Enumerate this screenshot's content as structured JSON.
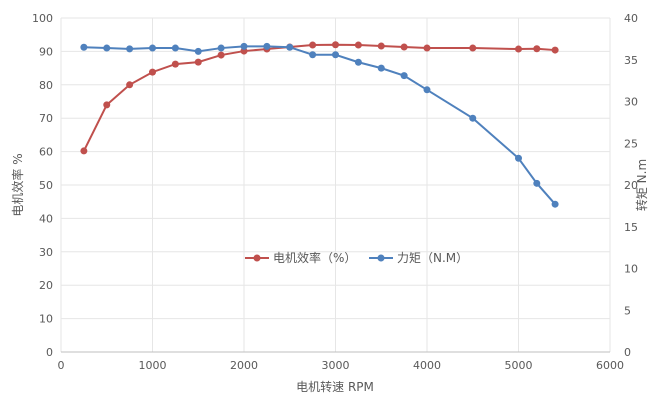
{
  "chart_data": {
    "type": "line",
    "title": "",
    "xlabel": "电机转速 RPM",
    "ylabel": "电机效率 %",
    "y2label": "转矩 N.m",
    "xlim": [
      0,
      6000
    ],
    "ylim": [
      0,
      100
    ],
    "y2lim": [
      0,
      40
    ],
    "xticks": [
      "0",
      "1000",
      "2000",
      "3000",
      "4000",
      "5000",
      "6000"
    ],
    "yticks": [
      "0",
      "10",
      "20",
      "30",
      "40",
      "50",
      "60",
      "70",
      "80",
      "90",
      "100"
    ],
    "y2ticks": [
      "0",
      "5",
      "10",
      "15",
      "20",
      "25",
      "30",
      "35",
      "40"
    ],
    "grid": true,
    "legend_position": "center",
    "x": [
      250,
      500,
      750,
      1000,
      1250,
      1500,
      1750,
      2000,
      2250,
      2500,
      2750,
      3000,
      3250,
      3500,
      3750,
      4000,
      4500,
      5000,
      5200,
      5400
    ],
    "series": [
      {
        "name": "电机效率（%）",
        "axis": "left",
        "color": "#C0504D",
        "values": [
          60.2,
          74,
          80,
          83.8,
          86.2,
          86.8,
          88.9,
          90.1,
          90.7,
          91.3,
          91.9,
          92,
          91.9,
          91.6,
          91.3,
          91,
          91,
          90.7,
          90.8,
          90.4
        ]
      },
      {
        "name": "力矩（N.M）",
        "axis": "right",
        "color": "#4F81BD",
        "values": [
          36.5,
          36.4,
          36.3,
          36.4,
          36.4,
          36.0,
          36.4,
          36.6,
          36.6,
          36.5,
          35.6,
          35.6,
          34.7,
          34.0,
          33.1,
          31.4,
          28.0,
          23.2,
          20.2,
          17.7
        ]
      }
    ]
  }
}
